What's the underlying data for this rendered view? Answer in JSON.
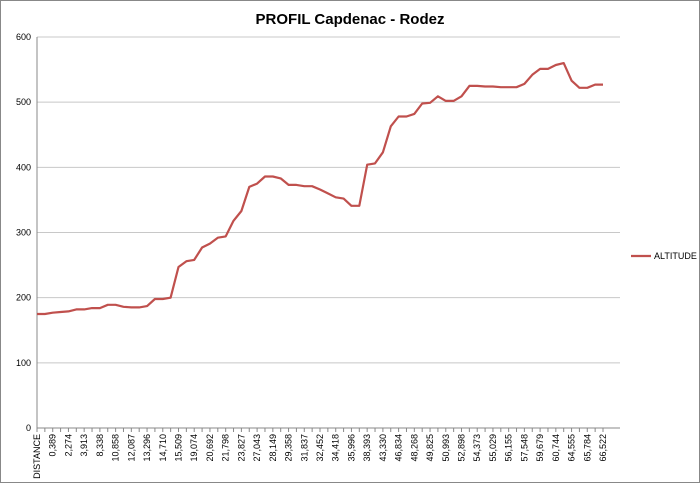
{
  "chart_data": {
    "type": "line",
    "title": "PROFIL Capdenac - Rodez",
    "categories": [
      "DISTANCE",
      null,
      "0,389",
      null,
      "2,274",
      null,
      "3,913",
      null,
      "8,338",
      null,
      "10,858",
      null,
      "12,087",
      null,
      "13,296",
      null,
      "14,710",
      null,
      "15,509",
      null,
      "19,074",
      null,
      "20,692",
      null,
      "21,798",
      null,
      "23,827",
      null,
      "27,043",
      null,
      "28,149",
      null,
      "29,358",
      null,
      "31,837",
      null,
      "32,452",
      null,
      "34,418",
      null,
      "35,996",
      null,
      "38,393",
      null,
      "43,330",
      null,
      "46,834",
      null,
      "48,268",
      null,
      "49,825",
      null,
      "50,993",
      null,
      "52,898",
      null,
      "54,373",
      null,
      "55,029",
      null,
      "56,155",
      null,
      "57,548",
      null,
      "59,679",
      null,
      "60,744",
      null,
      "64,555",
      null,
      "65,784",
      null,
      "66,522"
    ],
    "series": [
      {
        "name": "ALTITUDE",
        "color": "#c0504d",
        "values": [
          175,
          175,
          177,
          178,
          179,
          182,
          182,
          184,
          184,
          189,
          189,
          186,
          185,
          185,
          187,
          198,
          198,
          200,
          247,
          256,
          258,
          277,
          283,
          292,
          294,
          318,
          333,
          370,
          375,
          386,
          386,
          383,
          373,
          373,
          371,
          371,
          366,
          360,
          354,
          352,
          341,
          341,
          404,
          406,
          423,
          463,
          478,
          478,
          482,
          498,
          499,
          509,
          502,
          502,
          509,
          525,
          525,
          524,
          524,
          523,
          523,
          523,
          528,
          542,
          551,
          551,
          557,
          560,
          533,
          522,
          522,
          527,
          527
        ]
      }
    ],
    "ylim": [
      0,
      600
    ],
    "yticks": [
      0,
      100,
      200,
      300,
      400,
      500,
      600
    ],
    "grid": true,
    "legend": "right"
  }
}
